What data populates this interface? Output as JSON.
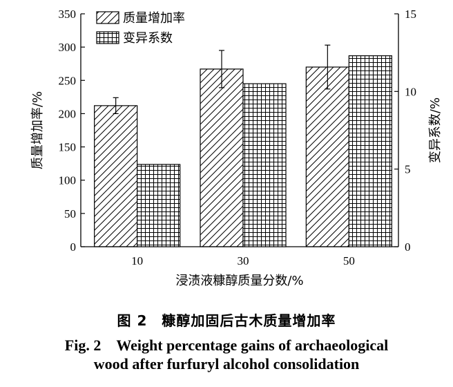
{
  "chart_data": {
    "type": "bar",
    "categories": [
      "10",
      "30",
      "50"
    ],
    "xlabel": "浸渍液糠醇质量分数/%",
    "ylabel": "质量增加率/%",
    "y2label": "变异系数/%",
    "ylim": [
      0,
      350
    ],
    "yticks": [
      0,
      50,
      100,
      150,
      200,
      250,
      300,
      350
    ],
    "y2lim": [
      0,
      15
    ],
    "y2ticks": [
      0,
      5,
      10,
      15
    ],
    "legend_position": "top-left",
    "series": [
      {
        "name": "质量增加率",
        "axis": "left",
        "pattern": "diagonal-hatch",
        "values": [
          212,
          267,
          270
        ],
        "error": [
          12,
          28,
          33
        ]
      },
      {
        "name": "变异系数",
        "axis": "right",
        "pattern": "grid-hatch",
        "values": [
          5.3,
          10.5,
          12.3
        ]
      }
    ]
  },
  "caption": {
    "cn": "图 2　糠醇加固后古木质量增加率",
    "en_line1": "Fig. 2　Weight percentage gains of archaeological",
    "en_line2": "wood after furfuryl alcohol consolidation"
  }
}
